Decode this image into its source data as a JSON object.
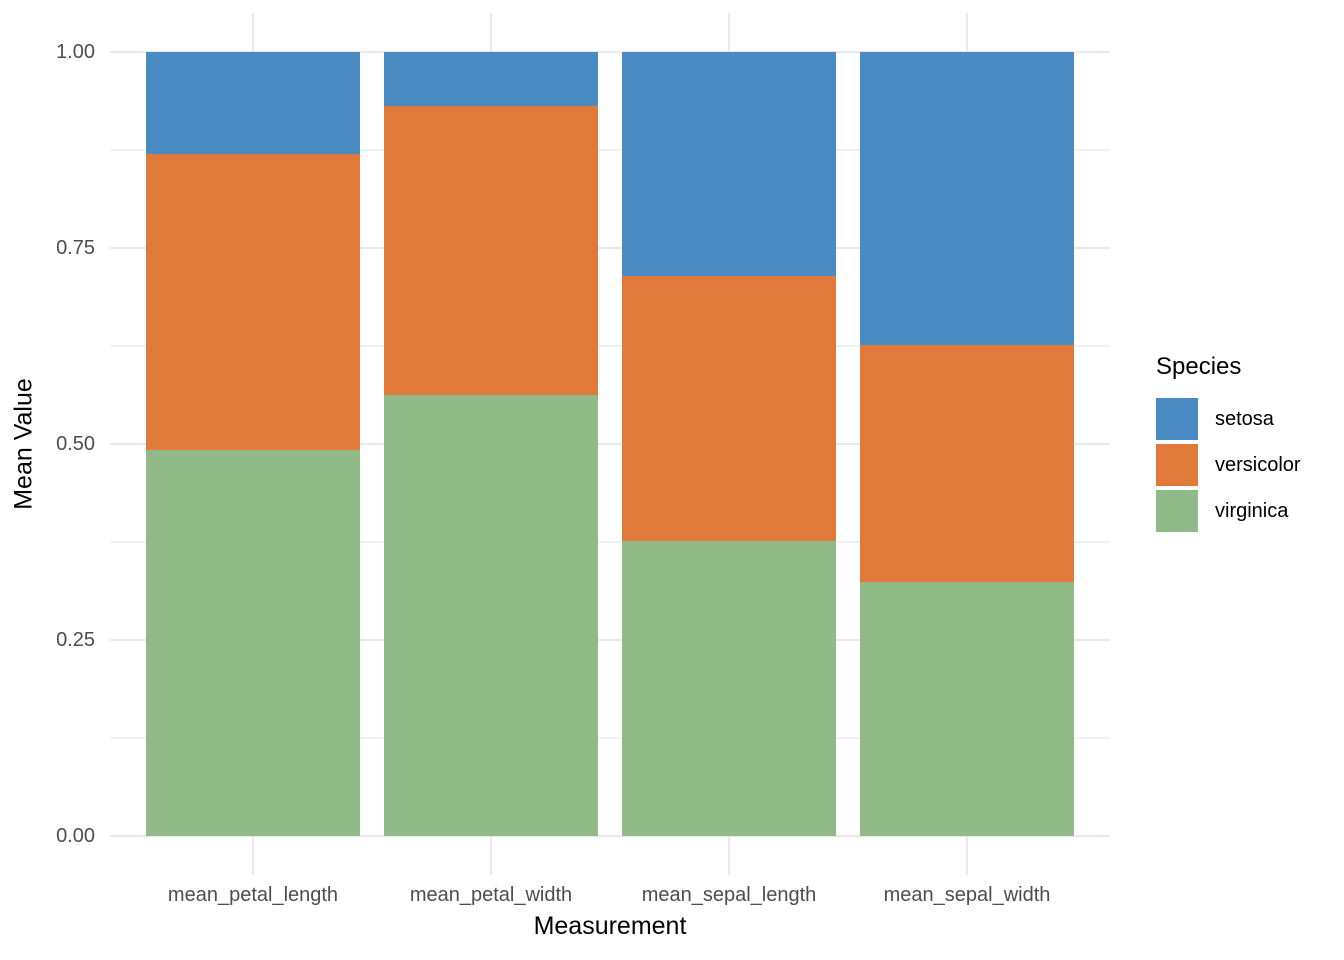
{
  "chart_data": {
    "type": "bar",
    "stacked": true,
    "normalized_fill": true,
    "title": "",
    "xlabel": "Measurement",
    "ylabel": "Mean Value",
    "categories": [
      "mean_petal_length",
      "mean_petal_width",
      "mean_sepal_length",
      "mean_sepal_width"
    ],
    "series": [
      {
        "name": "setosa",
        "color": "#4B8BC4",
        "values": [
          0.1297,
          0.0684,
          0.2856,
          0.3738
        ]
      },
      {
        "name": "versicolor",
        "color": "#E1793A",
        "values": [
          0.3779,
          0.3686,
          0.3386,
          0.302
        ]
      },
      {
        "name": "virginica",
        "color": "#90BB89",
        "values": [
          0.4925,
          0.5631,
          0.3758,
          0.3243
        ]
      }
    ],
    "stack_order_bottom_to_top": [
      "virginica",
      "versicolor",
      "setosa"
    ],
    "y_ticks": [
      {
        "label": "0.00",
        "value": 0.0
      },
      {
        "label": "0.25",
        "value": 0.25
      },
      {
        "label": "0.50",
        "value": 0.5
      },
      {
        "label": "0.75",
        "value": 0.75
      },
      {
        "label": "1.00",
        "value": 1.0
      }
    ],
    "y_minor_ticks": [
      0.125,
      0.375,
      0.625,
      0.875
    ],
    "ylim": [
      0,
      1
    ],
    "legend_title": "Species",
    "legend_position": "right",
    "grid": true
  },
  "colors": {
    "background": "#FFFFFF",
    "grid_major": "#E9E9E9",
    "grid_minor": "#F1F1F1",
    "tick_label": "#4D4D4D",
    "axis_title": "#000000",
    "legend_text": "#000000"
  }
}
